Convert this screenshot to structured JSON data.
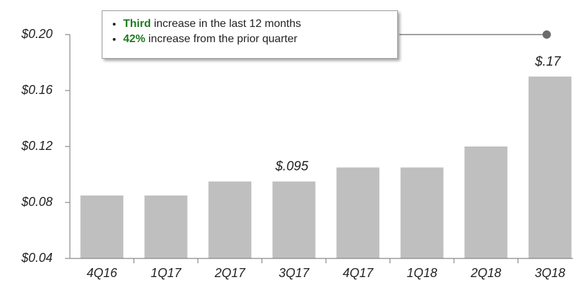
{
  "chart_data": {
    "type": "bar",
    "categories": [
      "4Q16",
      "1Q17",
      "2Q17",
      "3Q17",
      "4Q17",
      "1Q18",
      "2Q18",
      "3Q18"
    ],
    "values": [
      0.085,
      0.085,
      0.095,
      0.095,
      0.105,
      0.105,
      0.12,
      0.17
    ],
    "value_labels": [
      null,
      null,
      null,
      "$.095",
      null,
      null,
      null,
      "$.17"
    ],
    "color": "#bfbfbf",
    "ylim": [
      0.04,
      0.2
    ],
    "yticks": [
      {
        "value": 0.04,
        "label": "$0.04"
      },
      {
        "value": 0.08,
        "label": "$0.08"
      },
      {
        "value": 0.12,
        "label": "$0.12"
      },
      {
        "value": 0.16,
        "label": "$0.16"
      },
      {
        "value": 0.2,
        "label": "$0.20"
      }
    ],
    "grid": false,
    "annotation": [
      {
        "highlight": "Third",
        "text": "increase in the last 12 months"
      },
      {
        "highlight": "42%",
        "text": "increase from the prior quarter"
      }
    ]
  }
}
